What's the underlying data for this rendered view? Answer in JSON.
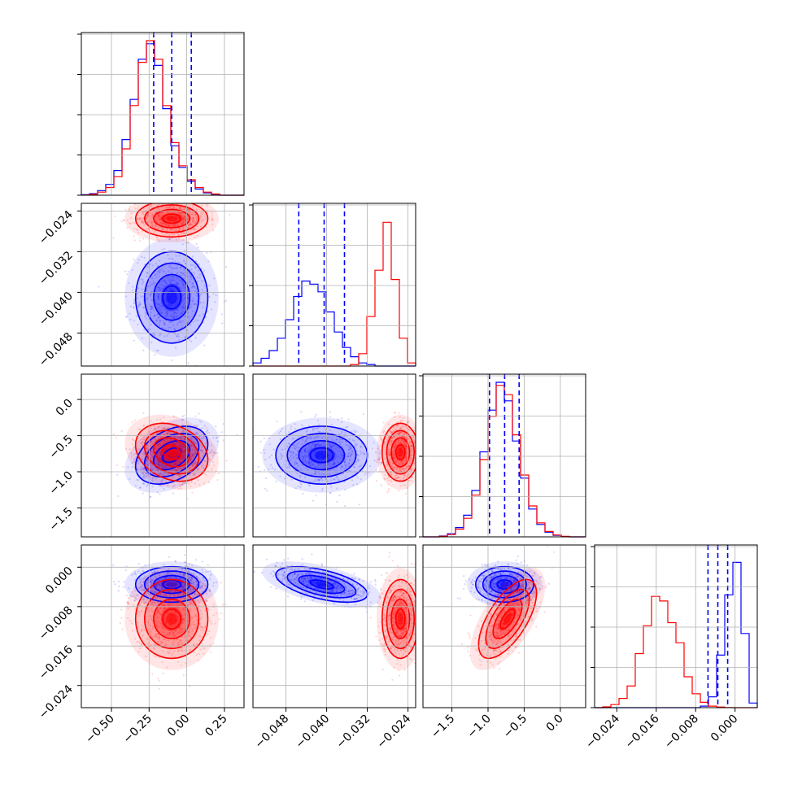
{
  "chart_data": {
    "type": "corner",
    "grid": true,
    "series": [
      {
        "color": "#0000ff",
        "mean": [
          -0.1,
          -0.041,
          -0.77,
          -0.0035
        ],
        "sd": [
          0.12,
          0.0045,
          0.2,
          0.0018
        ],
        "corr": [
          [
            1,
            0,
            0.38,
            0
          ],
          [
            0,
            1,
            0,
            -0.55
          ],
          [
            0.38,
            0,
            1,
            0
          ],
          [
            0,
            -0.55,
            0,
            1
          ]
        ],
        "quantiles": [
          [
            -0.22,
            -0.1,
            0.03
          ],
          [
            -0.0455,
            -0.0405,
            -0.0365
          ],
          [
            -0.98,
            -0.77,
            -0.57
          ],
          [
            -0.0055,
            -0.0035,
            -0.0015
          ]
        ]
      },
      {
        "color": "#ff0000",
        "mean": [
          -0.1,
          -0.0255,
          -0.73,
          -0.0105
        ],
        "sd": [
          0.12,
          0.0018,
          0.2,
          0.004
        ],
        "corr": [
          [
            1,
            0,
            -0.25,
            0
          ],
          [
            0,
            1,
            0,
            0
          ],
          [
            -0.25,
            0,
            1,
            0.65
          ],
          [
            0,
            0,
            0.65,
            1
          ]
        ]
      }
    ],
    "parameters": [
      {
        "range": [
          -0.7,
          0.38
        ],
        "ticks": [
          -0.5,
          -0.25,
          0.0,
          0.25
        ],
        "tick_labels": [
          "−0.50",
          "−0.25",
          "0.00",
          "0.25"
        ]
      },
      {
        "range": [
          -0.0545,
          -0.0225
        ],
        "ticks": [
          -0.048,
          -0.04,
          -0.032,
          -0.024
        ],
        "tick_labels": [
          "−0.048",
          "−0.040",
          "−0.032",
          "−0.024"
        ]
      },
      {
        "range": [
          -1.9,
          0.35
        ],
        "ticks": [
          -1.5,
          -1.0,
          -0.5,
          0.0
        ],
        "tick_labels": [
          "−1.5",
          "−1.0",
          "−0.5",
          "0.0"
        ]
      },
      {
        "range": [
          -0.0285,
          0.0045
        ],
        "ticks": [
          -0.024,
          -0.016,
          -0.008,
          0.0
        ],
        "tick_labels": [
          "−0.024",
          "−0.016",
          "−0.008",
          "0.000"
        ]
      }
    ],
    "histograms": [
      {
        "bins": 20,
        "blue": [
          0.003,
          0.01,
          0.03,
          0.07,
          0.16,
          0.36,
          0.62,
          0.88,
          0.98,
          0.84,
          0.56,
          0.32,
          0.18,
          0.09,
          0.04,
          0.015,
          0.005,
          0,
          0,
          0
        ],
        "red": [
          0.001,
          0.006,
          0.02,
          0.05,
          0.12,
          0.3,
          0.58,
          0.86,
          1.0,
          0.88,
          0.58,
          0.34,
          0.19,
          0.1,
          0.05,
          0.02,
          0.008,
          0,
          0,
          0
        ]
      },
      {
        "bins": 20,
        "blue": [
          0.02,
          0.05,
          0.1,
          0.18,
          0.3,
          0.45,
          0.55,
          0.53,
          0.48,
          0.35,
          0.22,
          0.12,
          0.06,
          0.02,
          0.01,
          0,
          0,
          0,
          0,
          0
        ],
        "red": [
          0,
          0,
          0,
          0,
          0,
          0,
          0,
          0,
          0,
          0,
          0,
          0,
          0.01,
          0.08,
          0.32,
          0.62,
          0.93,
          0.56,
          0.18,
          0.02
        ]
      },
      {
        "bins": 20,
        "blue": [
          0,
          0,
          0.005,
          0.02,
          0.06,
          0.14,
          0.3,
          0.55,
          0.82,
          1.0,
          0.88,
          0.62,
          0.38,
          0.18,
          0.08,
          0.03,
          0.01,
          0.002,
          0,
          0
        ],
        "red": [
          0,
          0,
          0.003,
          0.015,
          0.05,
          0.12,
          0.27,
          0.5,
          0.78,
          0.98,
          0.92,
          0.66,
          0.4,
          0.2,
          0.09,
          0.035,
          0.012,
          0.003,
          0,
          0
        ]
      },
      {
        "bins": 20,
        "blue": [
          0,
          0,
          0,
          0,
          0,
          0,
          0,
          0,
          0,
          0,
          0,
          0,
          0,
          0.01,
          0.07,
          0.34,
          0.73,
          0.94,
          0.48,
          0.03
        ],
        "red": [
          0,
          0.005,
          0.02,
          0.06,
          0.14,
          0.35,
          0.53,
          0.72,
          0.69,
          0.55,
          0.42,
          0.2,
          0.09,
          0.035,
          0.01,
          0.004,
          0.001,
          0,
          0,
          0
        ]
      }
    ]
  }
}
